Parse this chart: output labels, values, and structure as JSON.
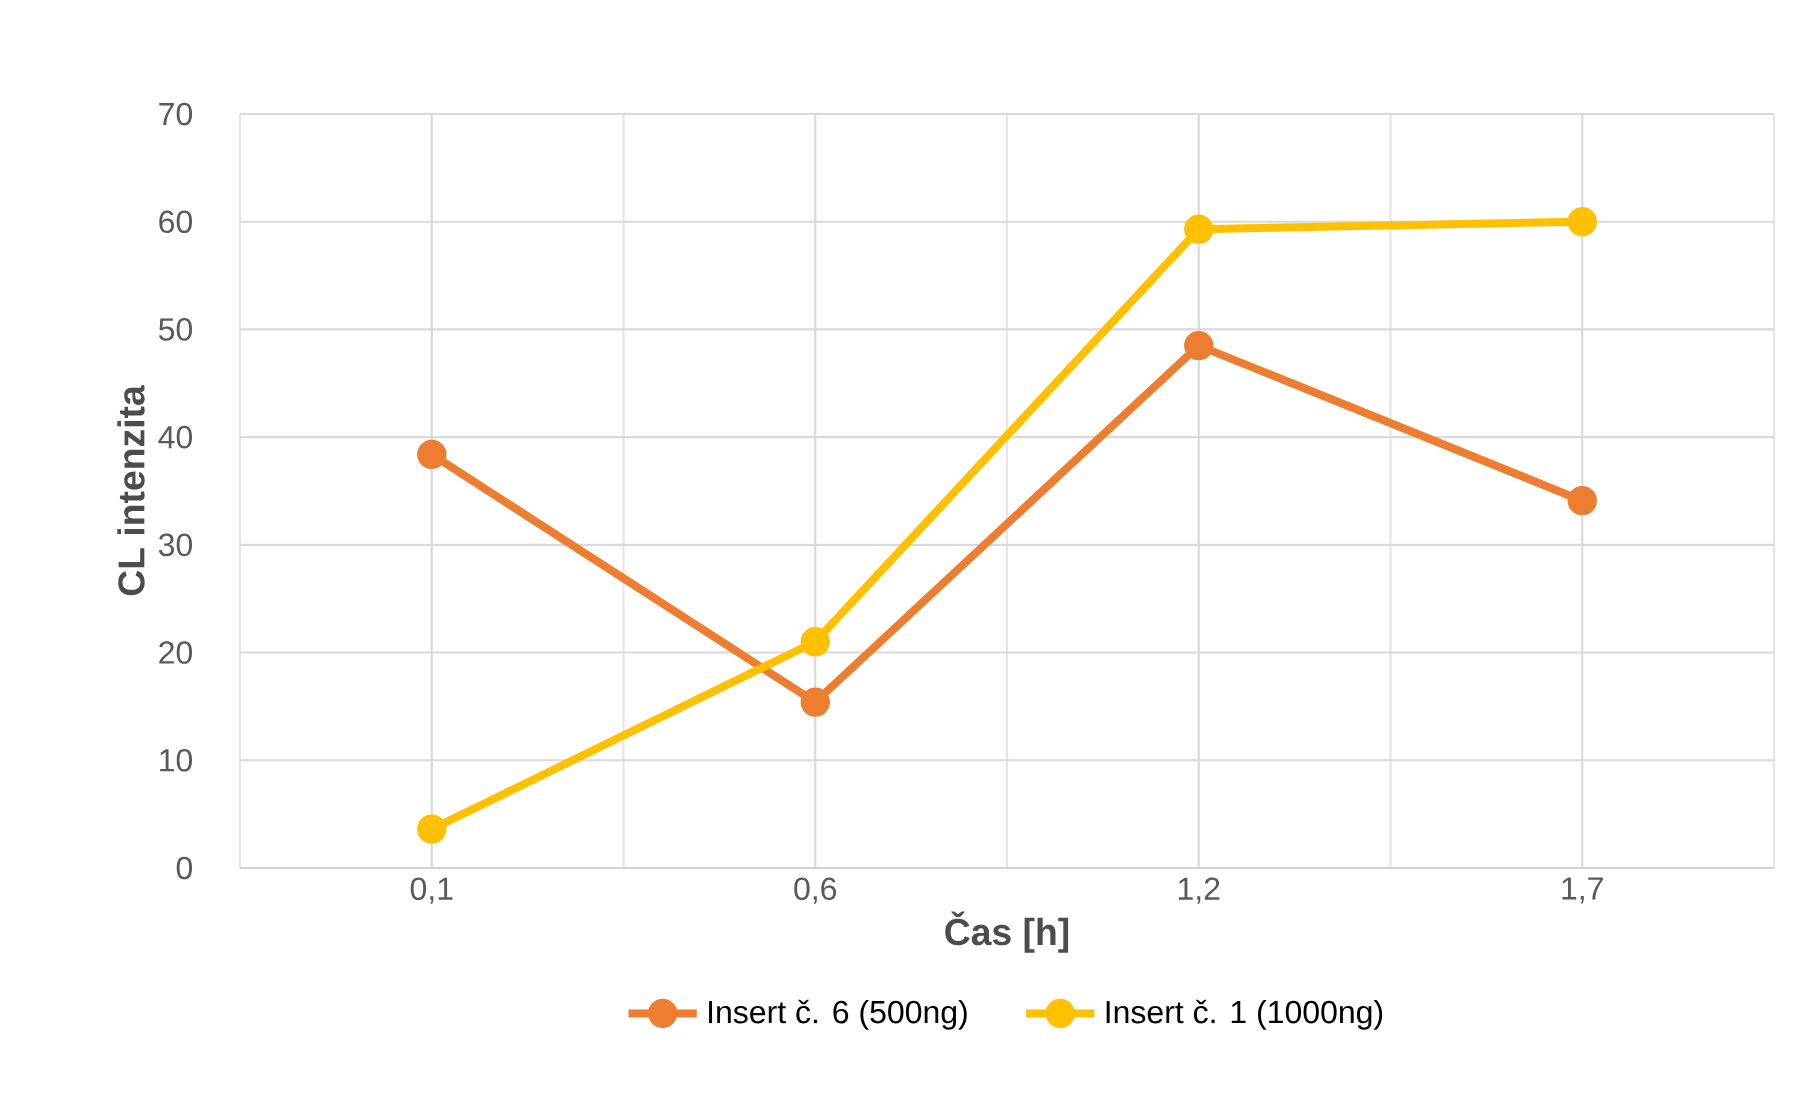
{
  "chart_data": {
    "type": "line",
    "xlabel": "Čas [h]",
    "ylabel": "CL intenzita",
    "categories": [
      "0,1",
      "0,6",
      "1,2",
      "1,7"
    ],
    "series": [
      {
        "name": "Insert č. 6 (500ng)",
        "color": "#ed7d31",
        "values": [
          38.4,
          15.4,
          48.5,
          34.1
        ]
      },
      {
        "name": "Insert č. 1  (1000ng)",
        "color": "#ffc000",
        "values": [
          3.6,
          21.0,
          59.3,
          60.0
        ]
      }
    ],
    "ylim": [
      0,
      70
    ],
    "yticks": [
      0,
      10,
      20,
      30,
      40,
      50,
      60,
      70
    ],
    "grid": true,
    "legend": "bottom",
    "marker": "circle",
    "line_style": "solid"
  }
}
